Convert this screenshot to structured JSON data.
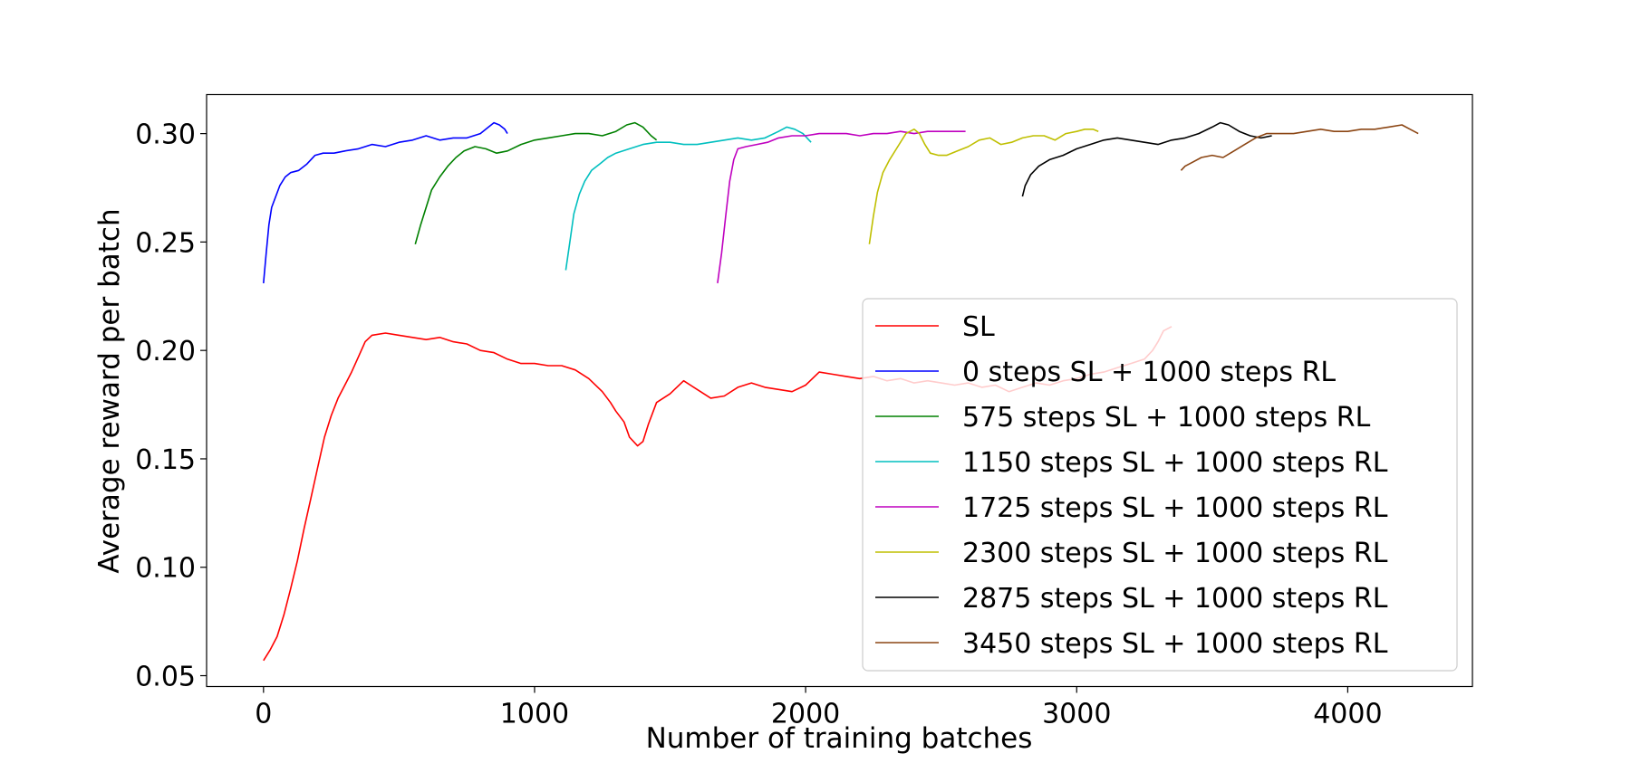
{
  "chart_data": {
    "type": "line",
    "xlabel": "Number of training batches",
    "ylabel": "Average reward per batch",
    "xlim": [
      -210,
      4460
    ],
    "ylim": [
      0.045,
      0.318
    ],
    "xticks": [
      0,
      1000,
      2000,
      3000,
      4000
    ],
    "yticks": [
      0.05,
      0.1,
      0.15,
      0.2,
      0.25,
      0.3
    ],
    "ytick_labels": [
      "0.05",
      "0.10",
      "0.15",
      "0.20",
      "0.25",
      "0.30"
    ],
    "grid": false,
    "legend_position": "lower-right",
    "series": [
      {
        "name": "SL",
        "color": "#ff0000",
        "points": [
          [
            0,
            0.057
          ],
          [
            25,
            0.062
          ],
          [
            50,
            0.068
          ],
          [
            75,
            0.078
          ],
          [
            100,
            0.09
          ],
          [
            125,
            0.103
          ],
          [
            150,
            0.118
          ],
          [
            175,
            0.132
          ],
          [
            200,
            0.146
          ],
          [
            225,
            0.16
          ],
          [
            250,
            0.17
          ],
          [
            275,
            0.178
          ],
          [
            300,
            0.184
          ],
          [
            325,
            0.19
          ],
          [
            350,
            0.197
          ],
          [
            375,
            0.204
          ],
          [
            400,
            0.207
          ],
          [
            450,
            0.208
          ],
          [
            500,
            0.207
          ],
          [
            550,
            0.206
          ],
          [
            600,
            0.205
          ],
          [
            650,
            0.206
          ],
          [
            700,
            0.204
          ],
          [
            750,
            0.203
          ],
          [
            800,
            0.2
          ],
          [
            850,
            0.199
          ],
          [
            900,
            0.196
          ],
          [
            950,
            0.194
          ],
          [
            1000,
            0.194
          ],
          [
            1050,
            0.193
          ],
          [
            1100,
            0.193
          ],
          [
            1150,
            0.191
          ],
          [
            1200,
            0.187
          ],
          [
            1250,
            0.181
          ],
          [
            1280,
            0.176
          ],
          [
            1300,
            0.172
          ],
          [
            1330,
            0.167
          ],
          [
            1350,
            0.16
          ],
          [
            1380,
            0.156
          ],
          [
            1400,
            0.158
          ],
          [
            1420,
            0.166
          ],
          [
            1450,
            0.176
          ],
          [
            1500,
            0.18
          ],
          [
            1550,
            0.186
          ],
          [
            1600,
            0.182
          ],
          [
            1650,
            0.178
          ],
          [
            1700,
            0.179
          ],
          [
            1750,
            0.183
          ],
          [
            1800,
            0.185
          ],
          [
            1850,
            0.183
          ],
          [
            1900,
            0.182
          ],
          [
            1950,
            0.181
          ],
          [
            2000,
            0.184
          ],
          [
            2050,
            0.19
          ],
          [
            2100,
            0.189
          ],
          [
            2150,
            0.188
          ],
          [
            2200,
            0.187
          ],
          [
            2250,
            0.188
          ],
          [
            2300,
            0.186
          ],
          [
            2350,
            0.187
          ],
          [
            2400,
            0.185
          ],
          [
            2450,
            0.186
          ],
          [
            2500,
            0.185
          ],
          [
            2550,
            0.184
          ],
          [
            2600,
            0.185
          ],
          [
            2650,
            0.183
          ],
          [
            2700,
            0.184
          ],
          [
            2750,
            0.181
          ],
          [
            2800,
            0.183
          ],
          [
            2850,
            0.185
          ],
          [
            2900,
            0.184
          ],
          [
            2950,
            0.186
          ],
          [
            3000,
            0.187
          ],
          [
            3050,
            0.189
          ],
          [
            3100,
            0.19
          ],
          [
            3150,
            0.192
          ],
          [
            3200,
            0.194
          ],
          [
            3250,
            0.196
          ],
          [
            3280,
            0.2
          ],
          [
            3300,
            0.204
          ],
          [
            3320,
            0.209
          ],
          [
            3350,
            0.211
          ]
        ]
      },
      {
        "name": "0 steps SL + 1000 steps RL",
        "color": "#0000ff",
        "points": [
          [
            0,
            0.231
          ],
          [
            10,
            0.245
          ],
          [
            20,
            0.258
          ],
          [
            30,
            0.266
          ],
          [
            45,
            0.271
          ],
          [
            60,
            0.276
          ],
          [
            80,
            0.28
          ],
          [
            100,
            0.282
          ],
          [
            130,
            0.283
          ],
          [
            160,
            0.286
          ],
          [
            190,
            0.29
          ],
          [
            220,
            0.291
          ],
          [
            260,
            0.291
          ],
          [
            300,
            0.292
          ],
          [
            350,
            0.293
          ],
          [
            400,
            0.295
          ],
          [
            450,
            0.294
          ],
          [
            500,
            0.296
          ],
          [
            550,
            0.297
          ],
          [
            600,
            0.299
          ],
          [
            650,
            0.297
          ],
          [
            700,
            0.298
          ],
          [
            750,
            0.298
          ],
          [
            800,
            0.3
          ],
          [
            830,
            0.303
          ],
          [
            850,
            0.305
          ],
          [
            870,
            0.304
          ],
          [
            890,
            0.302
          ],
          [
            900,
            0.3
          ]
        ]
      },
      {
        "name": "575 steps SL + 1000 steps RL",
        "color": "#008000",
        "points": [
          [
            560,
            0.249
          ],
          [
            580,
            0.258
          ],
          [
            600,
            0.266
          ],
          [
            620,
            0.274
          ],
          [
            650,
            0.28
          ],
          [
            680,
            0.285
          ],
          [
            710,
            0.289
          ],
          [
            740,
            0.292
          ],
          [
            780,
            0.294
          ],
          [
            820,
            0.293
          ],
          [
            860,
            0.291
          ],
          [
            900,
            0.292
          ],
          [
            950,
            0.295
          ],
          [
            1000,
            0.297
          ],
          [
            1050,
            0.298
          ],
          [
            1100,
            0.299
          ],
          [
            1150,
            0.3
          ],
          [
            1200,
            0.3
          ],
          [
            1250,
            0.299
          ],
          [
            1300,
            0.301
          ],
          [
            1340,
            0.304
          ],
          [
            1370,
            0.305
          ],
          [
            1400,
            0.303
          ],
          [
            1430,
            0.299
          ],
          [
            1450,
            0.297
          ]
        ]
      },
      {
        "name": "1150 steps SL + 1000 steps RL",
        "color": "#00bfbf",
        "points": [
          [
            1115,
            0.237
          ],
          [
            1130,
            0.25
          ],
          [
            1145,
            0.263
          ],
          [
            1165,
            0.272
          ],
          [
            1185,
            0.278
          ],
          [
            1210,
            0.283
          ],
          [
            1240,
            0.286
          ],
          [
            1270,
            0.289
          ],
          [
            1300,
            0.291
          ],
          [
            1350,
            0.293
          ],
          [
            1400,
            0.295
          ],
          [
            1450,
            0.296
          ],
          [
            1500,
            0.296
          ],
          [
            1550,
            0.295
          ],
          [
            1600,
            0.295
          ],
          [
            1650,
            0.296
          ],
          [
            1700,
            0.297
          ],
          [
            1750,
            0.298
          ],
          [
            1800,
            0.297
          ],
          [
            1850,
            0.298
          ],
          [
            1900,
            0.301
          ],
          [
            1930,
            0.303
          ],
          [
            1960,
            0.302
          ],
          [
            1990,
            0.3
          ],
          [
            2020,
            0.296
          ]
        ]
      },
      {
        "name": "1725 steps SL + 1000 steps RL",
        "color": "#bf00bf",
        "points": [
          [
            1675,
            0.231
          ],
          [
            1690,
            0.245
          ],
          [
            1705,
            0.262
          ],
          [
            1720,
            0.278
          ],
          [
            1735,
            0.288
          ],
          [
            1750,
            0.293
          ],
          [
            1780,
            0.294
          ],
          [
            1820,
            0.295
          ],
          [
            1860,
            0.296
          ],
          [
            1900,
            0.298
          ],
          [
            1950,
            0.299
          ],
          [
            2000,
            0.299
          ],
          [
            2050,
            0.3
          ],
          [
            2100,
            0.3
          ],
          [
            2150,
            0.3
          ],
          [
            2200,
            0.299
          ],
          [
            2250,
            0.3
          ],
          [
            2300,
            0.3
          ],
          [
            2350,
            0.301
          ],
          [
            2400,
            0.3
          ],
          [
            2450,
            0.301
          ],
          [
            2500,
            0.301
          ],
          [
            2550,
            0.301
          ],
          [
            2590,
            0.301
          ]
        ]
      },
      {
        "name": "2300 steps SL + 1000 steps RL",
        "color": "#bfbf00",
        "points": [
          [
            2235,
            0.249
          ],
          [
            2250,
            0.262
          ],
          [
            2265,
            0.273
          ],
          [
            2285,
            0.282
          ],
          [
            2310,
            0.288
          ],
          [
            2340,
            0.294
          ],
          [
            2370,
            0.3
          ],
          [
            2400,
            0.302
          ],
          [
            2420,
            0.3
          ],
          [
            2440,
            0.295
          ],
          [
            2460,
            0.291
          ],
          [
            2490,
            0.29
          ],
          [
            2520,
            0.29
          ],
          [
            2560,
            0.292
          ],
          [
            2600,
            0.294
          ],
          [
            2640,
            0.297
          ],
          [
            2680,
            0.298
          ],
          [
            2720,
            0.295
          ],
          [
            2760,
            0.296
          ],
          [
            2800,
            0.298
          ],
          [
            2840,
            0.299
          ],
          [
            2880,
            0.299
          ],
          [
            2920,
            0.297
          ],
          [
            2960,
            0.3
          ],
          [
            3000,
            0.301
          ],
          [
            3030,
            0.302
          ],
          [
            3060,
            0.302
          ],
          [
            3080,
            0.301
          ]
        ]
      },
      {
        "name": "2875 steps SL + 1000 steps RL",
        "color": "#000000",
        "points": [
          [
            2800,
            0.271
          ],
          [
            2810,
            0.276
          ],
          [
            2830,
            0.281
          ],
          [
            2860,
            0.285
          ],
          [
            2900,
            0.288
          ],
          [
            2950,
            0.29
          ],
          [
            3000,
            0.293
          ],
          [
            3050,
            0.295
          ],
          [
            3100,
            0.297
          ],
          [
            3150,
            0.298
          ],
          [
            3200,
            0.297
          ],
          [
            3250,
            0.296
          ],
          [
            3300,
            0.295
          ],
          [
            3350,
            0.297
          ],
          [
            3400,
            0.298
          ],
          [
            3450,
            0.3
          ],
          [
            3500,
            0.303
          ],
          [
            3530,
            0.305
          ],
          [
            3560,
            0.304
          ],
          [
            3600,
            0.301
          ],
          [
            3640,
            0.299
          ],
          [
            3680,
            0.298
          ],
          [
            3720,
            0.299
          ]
        ]
      },
      {
        "name": "3450 steps SL + 1000 steps RL",
        "color": "#8b4513",
        "points": [
          [
            3385,
            0.283
          ],
          [
            3400,
            0.285
          ],
          [
            3430,
            0.287
          ],
          [
            3460,
            0.289
          ],
          [
            3500,
            0.29
          ],
          [
            3540,
            0.289
          ],
          [
            3580,
            0.292
          ],
          [
            3620,
            0.295
          ],
          [
            3660,
            0.298
          ],
          [
            3700,
            0.3
          ],
          [
            3750,
            0.3
          ],
          [
            3800,
            0.3
          ],
          [
            3850,
            0.301
          ],
          [
            3900,
            0.302
          ],
          [
            3950,
            0.301
          ],
          [
            4000,
            0.301
          ],
          [
            4050,
            0.302
          ],
          [
            4100,
            0.302
          ],
          [
            4150,
            0.303
          ],
          [
            4200,
            0.304
          ],
          [
            4230,
            0.302
          ],
          [
            4260,
            0.3
          ]
        ]
      }
    ]
  }
}
